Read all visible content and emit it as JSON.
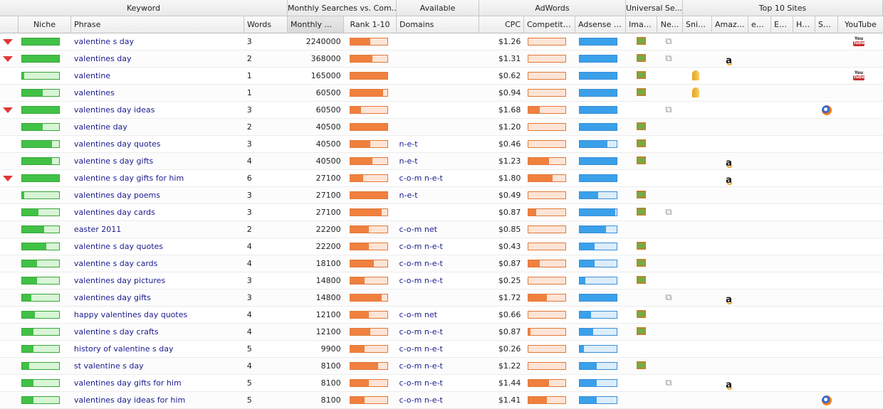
{
  "group_headers": {
    "keyword": "Keyword",
    "monthly_searches_vs_com": "Monthly Searches vs. Com...",
    "available": "Available",
    "adwords": "AdWords",
    "universal_search": "Universal Se...",
    "top10": "Top 10 Sites"
  },
  "columns": {
    "niche": "Niche",
    "phrase": "Phrase",
    "words": "Words",
    "monthly": "Monthly ...",
    "rank": "Rank 1-10",
    "domains": "Domains",
    "cpc": "CPC",
    "competition": "Competition",
    "adsense": "Adsense Val",
    "images": "Images",
    "news": "Ne...",
    "sniper": "Sniper",
    "amazon": "Amazon",
    "ebay": "eB...",
    "ezine": "Ez...",
    "hub": "Hu...",
    "squidoo": "Sq...",
    "youtube": "YouTube"
  },
  "rows": [
    {
      "gem": true,
      "niche": 1.0,
      "phrase": "valentine s day",
      "words": "3",
      "monthly": "2240000",
      "rank": 0.55,
      "domains": "",
      "cpc": "$1.26",
      "competition": 0.0,
      "adsense": 1.0,
      "images": true,
      "news": true,
      "sniper": false,
      "amazon": false,
      "squidoo": false,
      "youtube": true
    },
    {
      "gem": true,
      "niche": 1.0,
      "phrase": "valentines day",
      "words": "2",
      "monthly": "368000",
      "rank": 0.6,
      "domains": "",
      "cpc": "$1.31",
      "competition": 0.0,
      "adsense": 1.0,
      "images": true,
      "news": true,
      "sniper": false,
      "amazon": true,
      "squidoo": false,
      "youtube": false
    },
    {
      "gem": false,
      "niche": 0.05,
      "phrase": "valentine",
      "words": "1",
      "monthly": "165000",
      "rank": 1.0,
      "domains": "",
      "cpc": "$0.62",
      "competition": 0.0,
      "adsense": 1.0,
      "images": true,
      "news": false,
      "sniper": true,
      "amazon": false,
      "squidoo": false,
      "youtube": true
    },
    {
      "gem": false,
      "niche": 0.55,
      "phrase": "valentines",
      "words": "1",
      "monthly": "60500",
      "rank": 0.9,
      "domains": "",
      "cpc": "$0.94",
      "competition": 0.0,
      "adsense": 1.0,
      "images": true,
      "news": false,
      "sniper": true,
      "amazon": false,
      "squidoo": false,
      "youtube": false
    },
    {
      "gem": true,
      "niche": 1.0,
      "phrase": "valentines day ideas",
      "words": "3",
      "monthly": "60500",
      "rank": 0.3,
      "domains": "",
      "cpc": "$1.68",
      "competition": 0.3,
      "adsense": 1.0,
      "images": false,
      "news": true,
      "sniper": false,
      "amazon": false,
      "squidoo": true,
      "youtube": false
    },
    {
      "gem": false,
      "niche": 0.55,
      "phrase": "valentine day",
      "words": "2",
      "monthly": "40500",
      "rank": 1.0,
      "domains": "",
      "cpc": "$1.20",
      "competition": 0.0,
      "adsense": 1.0,
      "images": true,
      "news": false,
      "sniper": false,
      "amazon": false,
      "squidoo": false,
      "youtube": false
    },
    {
      "gem": false,
      "niche": 0.8,
      "phrase": "valentines day quotes",
      "words": "3",
      "monthly": "40500",
      "rank": 0.55,
      "domains": "n-e-t",
      "cpc": "$0.46",
      "competition": 0.0,
      "adsense": 0.75,
      "images": true,
      "news": false,
      "sniper": false,
      "amazon": false,
      "squidoo": false,
      "youtube": false
    },
    {
      "gem": false,
      "niche": 0.8,
      "phrase": "valentine s day gifts",
      "words": "4",
      "monthly": "40500",
      "rank": 0.6,
      "domains": "n-e-t",
      "cpc": "$1.23",
      "competition": 0.55,
      "adsense": 1.0,
      "images": true,
      "news": false,
      "sniper": false,
      "amazon": true,
      "squidoo": false,
      "youtube": false
    },
    {
      "gem": true,
      "niche": 1.0,
      "phrase": "valentine s day gifts for him",
      "words": "6",
      "monthly": "27100",
      "rank": 0.35,
      "domains": "c-o-m n-e-t",
      "cpc": "$1.80",
      "competition": 0.65,
      "adsense": 1.0,
      "images": false,
      "news": false,
      "sniper": false,
      "amazon": true,
      "squidoo": false,
      "youtube": false
    },
    {
      "gem": false,
      "niche": 0.05,
      "phrase": "valentines day poems",
      "words": "3",
      "monthly": "27100",
      "rank": 1.0,
      "domains": "n-e-t",
      "cpc": "$0.49",
      "competition": 0.0,
      "adsense": 0.5,
      "images": true,
      "news": false,
      "sniper": false,
      "amazon": false,
      "squidoo": false,
      "youtube": false
    },
    {
      "gem": false,
      "niche": 0.45,
      "phrase": "valentines day cards",
      "words": "3",
      "monthly": "27100",
      "rank": 0.85,
      "domains": "",
      "cpc": "$0.87",
      "competition": 0.2,
      "adsense": 0.95,
      "images": true,
      "news": true,
      "sniper": false,
      "amazon": false,
      "squidoo": false,
      "youtube": false
    },
    {
      "gem": false,
      "niche": 0.6,
      "phrase": "easter 2011",
      "words": "2",
      "monthly": "22200",
      "rank": 0.5,
      "domains": "c-o-m net",
      "cpc": "$0.85",
      "competition": 0.0,
      "adsense": 0.7,
      "images": false,
      "news": false,
      "sniper": false,
      "amazon": false,
      "squidoo": false,
      "youtube": false
    },
    {
      "gem": false,
      "niche": 0.65,
      "phrase": "valentine s day quotes",
      "words": "4",
      "monthly": "22200",
      "rank": 0.5,
      "domains": "c-o-m n-e-t",
      "cpc": "$0.43",
      "competition": 0.0,
      "adsense": 0.4,
      "images": true,
      "news": false,
      "sniper": false,
      "amazon": false,
      "squidoo": false,
      "youtube": false
    },
    {
      "gem": false,
      "niche": 0.4,
      "phrase": "valentine s day cards",
      "words": "4",
      "monthly": "18100",
      "rank": 0.65,
      "domains": "c-o-m n-e-t",
      "cpc": "$0.87",
      "competition": 0.3,
      "adsense": 0.4,
      "images": true,
      "news": false,
      "sniper": false,
      "amazon": false,
      "squidoo": false,
      "youtube": false
    },
    {
      "gem": false,
      "niche": 0.4,
      "phrase": "valentines day pictures",
      "words": "3",
      "monthly": "14800",
      "rank": 0.4,
      "domains": "c-o-m n-e-t",
      "cpc": "$0.25",
      "competition": 0.0,
      "adsense": 0.15,
      "images": true,
      "news": false,
      "sniper": false,
      "amazon": false,
      "squidoo": false,
      "youtube": false
    },
    {
      "gem": false,
      "niche": 0.25,
      "phrase": "valentines day gifts",
      "words": "3",
      "monthly": "14800",
      "rank": 0.85,
      "domains": "",
      "cpc": "$1.72",
      "competition": 0.5,
      "adsense": 1.0,
      "images": false,
      "news": true,
      "sniper": false,
      "amazon": true,
      "squidoo": false,
      "youtube": false
    },
    {
      "gem": false,
      "niche": 0.35,
      "phrase": "happy valentines day quotes",
      "words": "4",
      "monthly": "12100",
      "rank": 0.5,
      "domains": "c-o-m net",
      "cpc": "$0.66",
      "competition": 0.0,
      "adsense": 0.3,
      "images": true,
      "news": false,
      "sniper": false,
      "amazon": false,
      "squidoo": false,
      "youtube": false
    },
    {
      "gem": false,
      "niche": 0.3,
      "phrase": "valentine s day crafts",
      "words": "4",
      "monthly": "12100",
      "rank": 0.55,
      "domains": "c-o-m n-e-t",
      "cpc": "$0.87",
      "competition": 0.05,
      "adsense": 0.35,
      "images": true,
      "news": false,
      "sniper": false,
      "amazon": false,
      "squidoo": false,
      "youtube": false
    },
    {
      "gem": false,
      "niche": 0.3,
      "phrase": "history of valentine s day",
      "words": "5",
      "monthly": "9900",
      "rank": 0.4,
      "domains": "c-o-m n-e-t",
      "cpc": "$0.26",
      "competition": 0.0,
      "adsense": 0.1,
      "images": false,
      "news": false,
      "sniper": false,
      "amazon": false,
      "squidoo": false,
      "youtube": false
    },
    {
      "gem": false,
      "niche": 0.2,
      "phrase": "st valentine s day",
      "words": "4",
      "monthly": "8100",
      "rank": 0.75,
      "domains": "c-o-m n-e-t",
      "cpc": "$1.22",
      "competition": 0.0,
      "adsense": 0.45,
      "images": true,
      "news": false,
      "sniper": false,
      "amazon": false,
      "squidoo": false,
      "youtube": false
    },
    {
      "gem": false,
      "niche": 0.3,
      "phrase": "valentines day gifts for him",
      "words": "5",
      "monthly": "8100",
      "rank": 0.5,
      "domains": "c-o-m n-e-t",
      "cpc": "$1.44",
      "competition": 0.55,
      "adsense": 0.45,
      "images": false,
      "news": true,
      "sniper": false,
      "amazon": true,
      "squidoo": false,
      "youtube": false
    },
    {
      "gem": false,
      "niche": 0.3,
      "phrase": "valentines day ideas for him",
      "words": "5",
      "monthly": "8100",
      "rank": 0.4,
      "domains": "c-o-m n-e-t",
      "cpc": "$1.41",
      "competition": 0.5,
      "adsense": 0.45,
      "images": false,
      "news": false,
      "sniper": false,
      "amazon": false,
      "squidoo": true,
      "youtube": false
    }
  ]
}
